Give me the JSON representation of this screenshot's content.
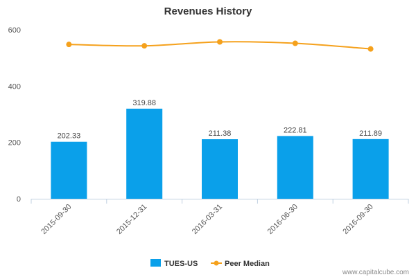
{
  "chart_data": {
    "type": "bar",
    "title": "Revenues History",
    "categories": [
      "2015-09-30",
      "2015-12-31",
      "2016-03-31",
      "2016-06-30",
      "2016-09-30"
    ],
    "series": [
      {
        "name": "TUES-US",
        "type": "bar",
        "values": [
          202.33,
          319.88,
          211.38,
          222.81,
          211.89
        ],
        "labels": [
          "202.33",
          "319.88",
          "211.38",
          "222.81",
          "211.89"
        ],
        "color": "#0aa0ea"
      },
      {
        "name": "Peer Median",
        "type": "line",
        "values": [
          548,
          543,
          557,
          552,
          532
        ],
        "color": "#f5a11c"
      }
    ],
    "yticks": [
      "0",
      "200",
      "400",
      "600"
    ],
    "ylim": [
      0,
      600
    ],
    "grid": false,
    "legend_position": "bottom"
  },
  "credit": "www.capitalcube.com"
}
